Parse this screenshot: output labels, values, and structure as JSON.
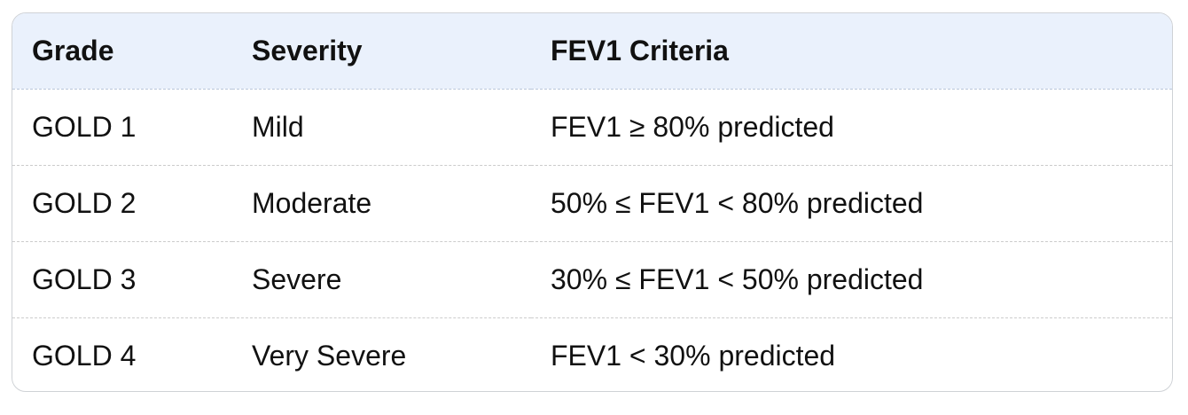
{
  "table": {
    "headers": [
      "Grade",
      "Severity",
      "FEV1 Criteria"
    ],
    "rows": [
      [
        "GOLD 1",
        "Mild",
        "FEV1 ≥ 80% predicted"
      ],
      [
        "GOLD 2",
        "Moderate",
        "50% ≤ FEV1 < 80% predicted"
      ],
      [
        "GOLD 3",
        "Severe",
        "30% ≤ FEV1 < 50% predicted"
      ],
      [
        "GOLD 4",
        "Very Severe",
        "FEV1 < 30% predicted"
      ]
    ]
  },
  "colors": {
    "header_background": "#eaf1fc",
    "border": "#cfd2d6",
    "text": "#111111"
  }
}
